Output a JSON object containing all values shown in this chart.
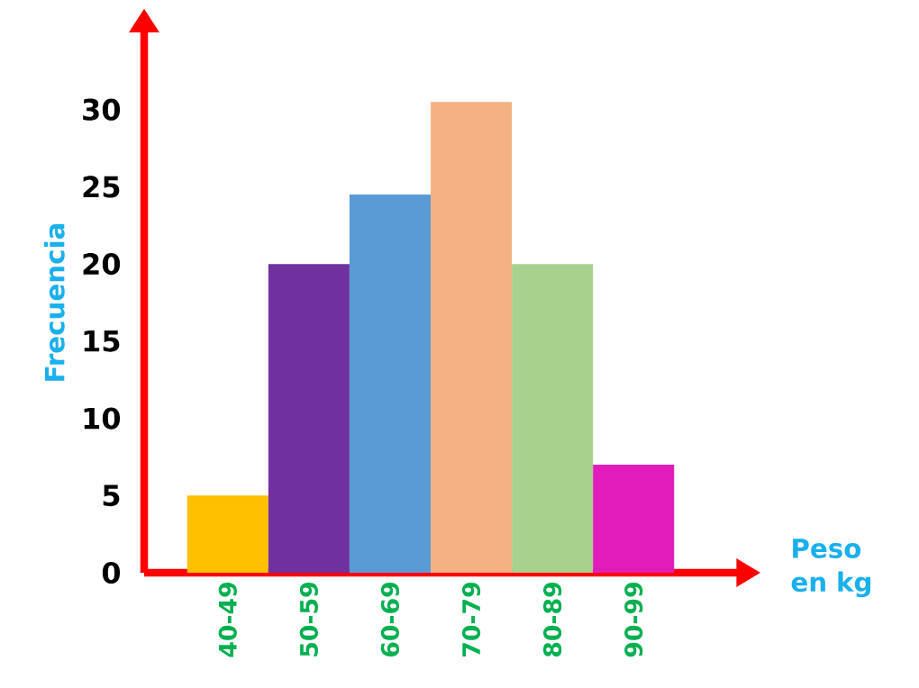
{
  "chart_data": {
    "type": "bar",
    "xlabel": "Peso en kg",
    "ylabel": "Frecuencia",
    "categories": [
      "40-49",
      "50-59",
      "60-69",
      "70-79",
      "80-89",
      "90-99"
    ],
    "values": [
      5,
      20,
      24.5,
      30.5,
      20,
      7
    ],
    "colors": [
      "#ffc000",
      "#7030a0",
      "#5b9bd5",
      "#f4b183",
      "#a9d18e",
      "#e21cba"
    ],
    "ylim": [
      0,
      35
    ],
    "yticks": [
      0,
      5,
      10,
      15,
      20,
      25,
      30
    ]
  }
}
